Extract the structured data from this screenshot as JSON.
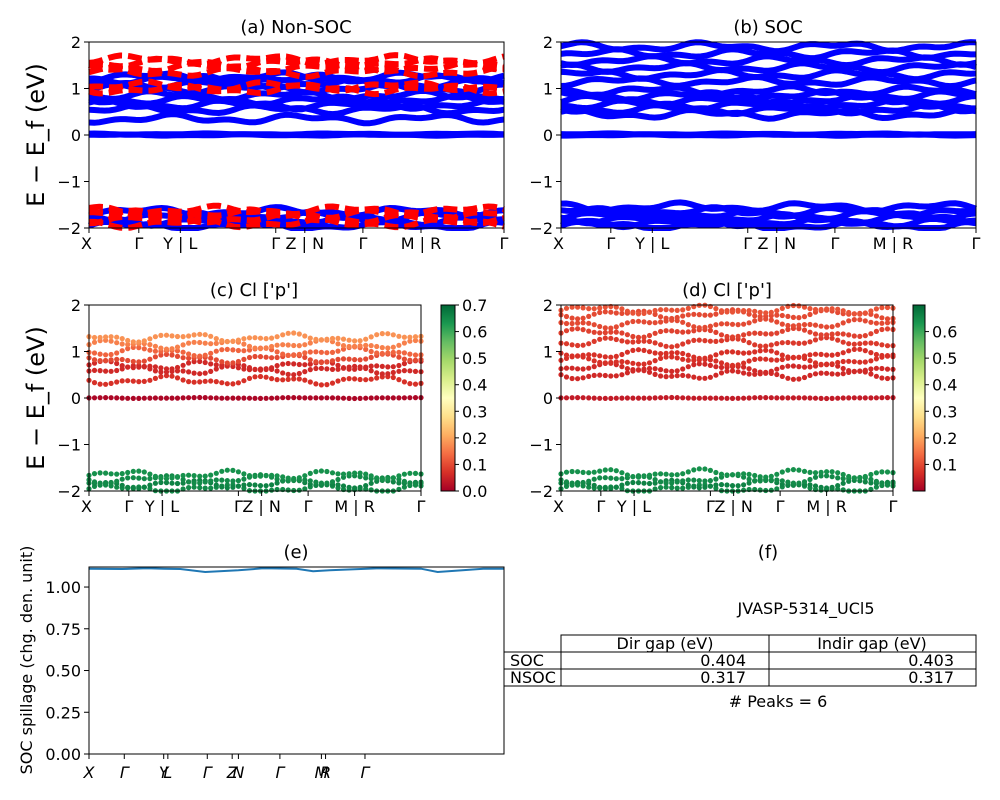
{
  "figure": {
    "ylabel_energy": "E − E_f (eV)",
    "kpath_labels": [
      "X",
      "Γ",
      "Y | L",
      "Γ",
      "Z | N",
      "Γ",
      "M | R",
      "Γ"
    ],
    "kpath_labels_spillage": [
      "X",
      "Γ",
      "Y",
      "L",
      "Γ",
      "Z",
      "N",
      "Γ",
      "M",
      "R",
      "Γ"
    ]
  },
  "chart_data": [
    {
      "panel": "a",
      "type": "line",
      "title": "(a) Non-SOC",
      "ylabel": "E − E_f (eV)",
      "ylim": [
        -2,
        2
      ],
      "yticks": [
        -2,
        -1,
        0,
        1,
        2
      ],
      "xticks": [
        "X",
        "Γ",
        "Y | L",
        "Γ",
        "Z | N",
        "Γ",
        "M | R",
        "Γ"
      ],
      "series": [
        {
          "color": "#0000ff",
          "style": "solid",
          "bands": [
            -1.95,
            -1.85,
            -1.75,
            -1.65,
            0.0,
            0.02,
            0.35,
            0.55,
            0.65,
            0.75,
            0.85,
            1.0,
            1.1,
            1.2,
            1.25
          ]
        },
        {
          "color": "#ff0000",
          "style": "dashed",
          "bands": [
            -1.9,
            -1.8,
            -1.7,
            -1.62,
            0.98,
            1.05,
            1.35,
            1.45,
            1.55,
            1.62
          ]
        }
      ]
    },
    {
      "panel": "b",
      "type": "line",
      "title": "(b) SOC",
      "ylim": [
        -2,
        2
      ],
      "yticks": [
        -2,
        -1,
        0,
        1,
        2
      ],
      "xticks": [
        "X",
        "Γ",
        "Y | L",
        "Γ",
        "Z | N",
        "Γ",
        "M | R",
        "Γ"
      ],
      "series": [
        {
          "color": "#0000ff",
          "style": "solid",
          "bands": [
            -1.95,
            -1.88,
            -1.8,
            -1.72,
            -1.65,
            -1.55,
            0.0,
            0.02,
            0.45,
            0.55,
            0.65,
            0.75,
            0.85,
            0.95,
            1.15,
            1.3,
            1.45,
            1.6,
            1.75,
            1.9
          ]
        }
      ]
    },
    {
      "panel": "c",
      "type": "scatter",
      "title": "(c)  Cl ['p']",
      "ylabel": "E − E_f (eV)",
      "ylim": [
        -2,
        2
      ],
      "yticks": [
        -2,
        -1,
        0,
        1,
        2
      ],
      "xticks": [
        "X",
        "Γ",
        "Y | L",
        "Γ",
        "Z | N",
        "Γ",
        "M | R",
        "Γ"
      ],
      "colorbar": {
        "min": 0.0,
        "max": 0.7,
        "ticks": [
          "0.0",
          "0.1",
          "0.2",
          "0.3",
          "0.4",
          "0.5",
          "0.6",
          "0.7"
        ]
      },
      "bands": [
        {
          "e": -1.95,
          "w": 0.65
        },
        {
          "e": -1.85,
          "w": 0.66
        },
        {
          "e": -1.75,
          "w": 0.65
        },
        {
          "e": -1.65,
          "w": 0.64
        },
        {
          "e": 0.0,
          "w": 0.01
        },
        {
          "e": 0.38,
          "w": 0.07
        },
        {
          "e": 0.6,
          "w": 0.06
        },
        {
          "e": 0.7,
          "w": 0.06
        },
        {
          "e": 0.85,
          "w": 0.1
        },
        {
          "e": 1.0,
          "w": 0.13
        },
        {
          "e": 1.15,
          "w": 0.16
        },
        {
          "e": 1.3,
          "w": 0.18
        }
      ]
    },
    {
      "panel": "d",
      "type": "scatter",
      "title": "(d) Cl ['p']",
      "ylim": [
        -2,
        2
      ],
      "yticks": [
        -2,
        -1,
        0,
        1,
        2
      ],
      "xticks": [
        "X",
        "Γ",
        "Y | L",
        "Γ",
        "Z | N",
        "Γ",
        "M | R",
        "Γ"
      ],
      "colorbar": {
        "min": 0.0,
        "max": 0.7,
        "ticks": [
          "0.1",
          "0.2",
          "0.3",
          "0.4",
          "0.5",
          "0.6"
        ]
      },
      "bands": [
        {
          "e": -1.95,
          "w": 0.65
        },
        {
          "e": -1.85,
          "w": 0.66
        },
        {
          "e": -1.75,
          "w": 0.65
        },
        {
          "e": -1.62,
          "w": 0.64
        },
        {
          "e": 0.0,
          "w": 0.04
        },
        {
          "e": 0.5,
          "w": 0.06
        },
        {
          "e": 0.65,
          "w": 0.06
        },
        {
          "e": 0.8,
          "w": 0.07
        },
        {
          "e": 0.95,
          "w": 0.07
        },
        {
          "e": 1.2,
          "w": 0.08
        },
        {
          "e": 1.4,
          "w": 0.09
        },
        {
          "e": 1.6,
          "w": 0.1
        },
        {
          "e": 1.8,
          "w": 0.1
        },
        {
          "e": 1.9,
          "w": 0.11
        }
      ]
    },
    {
      "panel": "e",
      "type": "line",
      "title": "(e)",
      "ylabel": "SOC spillage (chg. den. unit)",
      "ylim": [
        0,
        1.12
      ],
      "yticks": [
        "0.00",
        "0.25",
        "0.50",
        "0.75",
        "1.00"
      ],
      "xticks": [
        "X",
        "Γ",
        "Y",
        "L",
        "Γ",
        "Z",
        "N",
        "Γ",
        "M",
        "R",
        "Γ"
      ],
      "x": [
        0,
        0.08,
        0.14,
        0.18,
        0.22,
        0.28,
        0.36,
        0.42,
        0.5,
        0.54,
        0.58,
        0.7,
        0.8,
        0.84,
        0.9,
        0.95,
        1.0
      ],
      "y": [
        1.11,
        1.108,
        1.112,
        1.11,
        1.108,
        1.09,
        1.1,
        1.112,
        1.11,
        1.095,
        1.1,
        1.112,
        1.11,
        1.09,
        1.1,
        1.11,
        1.11
      ],
      "color": "#1f77b4"
    }
  ],
  "info": {
    "title": "(f)",
    "material": "JVASP-5314_UCl5",
    "table": {
      "headers": [
        "",
        "Dir gap (eV)",
        "Indir gap (eV)"
      ],
      "rows": [
        [
          "SOC",
          "0.404",
          "0.403"
        ],
        [
          "NSOC",
          "0.317",
          "0.317"
        ]
      ]
    },
    "peaks": "# Peaks = 6"
  }
}
